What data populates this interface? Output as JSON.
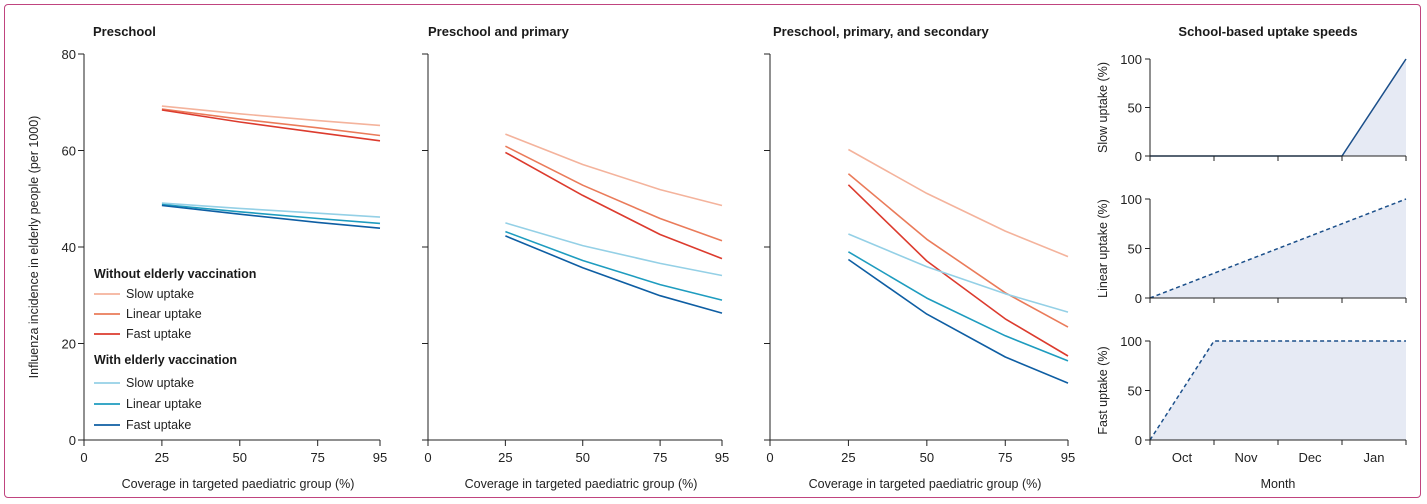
{
  "colors": {
    "without_slow": "#f4b39c",
    "without_linear": "#ea7b5a",
    "without_fast": "#dc3b2e",
    "with_slow": "#94d0e6",
    "with_linear": "#1e9cbf",
    "with_fast": "#0e5ea3",
    "uptake_line": "#1b4f8a",
    "uptake_fill": "#e6eaf4",
    "border": "#c0447f",
    "axis": "#222222"
  },
  "legend": {
    "without_heading": "Without elderly vaccination",
    "with_heading": "With elderly vaccination",
    "slow": "Slow uptake",
    "linear": "Linear uptake",
    "fast": "Fast uptake"
  },
  "chart_data": [
    {
      "type": "line",
      "title": "Preschool",
      "xlabel": "Coverage in targeted paediatric group (%)",
      "ylabel": "Influenza incidence in elderly people (per 1000)",
      "x_ticks": [
        "0",
        "25",
        "50",
        "75",
        "95"
      ],
      "y_ticks": [
        "0",
        "20",
        "40",
        "60",
        "80"
      ],
      "xlim": [
        0,
        95
      ],
      "ylim": [
        0,
        80
      ],
      "x": [
        25,
        50,
        75,
        95
      ],
      "series": [
        {
          "name": "Without elderly vaccination – Slow uptake",
          "key": "without_slow",
          "values": [
            69.2,
            67.6,
            66.2,
            65.2
          ]
        },
        {
          "name": "Without elderly vaccination – Linear uptake",
          "key": "without_linear",
          "values": [
            68.6,
            66.5,
            64.7,
            63.1
          ]
        },
        {
          "name": "Without elderly vaccination – Fast uptake",
          "key": "without_fast",
          "values": [
            68.4,
            65.9,
            63.7,
            62.0
          ]
        },
        {
          "name": "With elderly vaccination – Slow uptake",
          "key": "with_slow",
          "values": [
            49.1,
            48.0,
            47.0,
            46.2
          ]
        },
        {
          "name": "With elderly vaccination – Linear uptake",
          "key": "with_linear",
          "values": [
            48.8,
            47.3,
            45.9,
            44.9
          ]
        },
        {
          "name": "With elderly vaccination – Fast uptake",
          "key": "with_fast",
          "values": [
            48.6,
            46.8,
            45.1,
            43.9
          ]
        }
      ]
    },
    {
      "type": "line",
      "title": "Preschool and primary",
      "xlabel": "Coverage in targeted paediatric group (%)",
      "x_ticks": [
        "0",
        "25",
        "50",
        "75",
        "95"
      ],
      "xlim": [
        0,
        95
      ],
      "ylim": [
        0,
        80
      ],
      "x": [
        25,
        50,
        75,
        95
      ],
      "series": [
        {
          "name": "Without elderly vaccination – Slow uptake",
          "key": "without_slow",
          "values": [
            63.4,
            57.1,
            51.9,
            48.6
          ]
        },
        {
          "name": "Without elderly vaccination – Linear uptake",
          "key": "without_linear",
          "values": [
            60.9,
            52.8,
            45.9,
            41.3
          ]
        },
        {
          "name": "Without elderly vaccination – Fast uptake",
          "key": "without_fast",
          "values": [
            59.6,
            50.7,
            42.6,
            37.6
          ]
        },
        {
          "name": "With elderly vaccination – Slow uptake",
          "key": "with_slow",
          "values": [
            45.0,
            40.3,
            36.6,
            34.1
          ]
        },
        {
          "name": "With elderly vaccination – Linear uptake",
          "key": "with_linear",
          "values": [
            43.2,
            37.2,
            32.2,
            29.0
          ]
        },
        {
          "name": "With elderly vaccination – Fast uptake",
          "key": "with_fast",
          "values": [
            42.3,
            35.7,
            29.9,
            26.3
          ]
        }
      ]
    },
    {
      "type": "line",
      "title": "Preschool, primary, and secondary",
      "xlabel": "Coverage in targeted paediatric group (%)",
      "x_ticks": [
        "0",
        "25",
        "50",
        "75",
        "95"
      ],
      "xlim": [
        0,
        95
      ],
      "ylim": [
        0,
        80
      ],
      "x": [
        25,
        50,
        75,
        95
      ],
      "series": [
        {
          "name": "Without elderly vaccination – Slow uptake",
          "key": "without_slow",
          "values": [
            60.2,
            51.1,
            43.3,
            38.0
          ]
        },
        {
          "name": "Without elderly vaccination – Linear uptake",
          "key": "without_linear",
          "values": [
            55.2,
            41.6,
            30.5,
            23.4
          ]
        },
        {
          "name": "Without elderly vaccination – Fast uptake",
          "key": "without_fast",
          "values": [
            52.9,
            37.1,
            25.1,
            17.4
          ]
        },
        {
          "name": "With elderly vaccination – Slow uptake",
          "key": "with_slow",
          "values": [
            42.7,
            35.9,
            30.3,
            26.5
          ]
        },
        {
          "name": "With elderly vaccination – Linear uptake",
          "key": "with_linear",
          "values": [
            39.0,
            29.4,
            21.6,
            16.4
          ]
        },
        {
          "name": "With elderly vaccination – Fast uptake",
          "key": "with_fast",
          "values": [
            37.4,
            26.1,
            17.2,
            11.8
          ]
        }
      ]
    },
    {
      "type": "area",
      "title": "School-based uptake speeds",
      "xlabel": "Month",
      "x_ticks": [
        "Oct",
        "Nov",
        "Dec",
        "Jan"
      ],
      "xlim": [
        0,
        4
      ],
      "panels": [
        {
          "ylabel": "Slow uptake (%)",
          "y_ticks": [
            "0",
            "50",
            "100"
          ],
          "ylim": [
            0,
            100
          ],
          "line_style": "solid",
          "x": [
            0,
            3,
            4
          ],
          "values": [
            0,
            0,
            100
          ]
        },
        {
          "ylabel": "Linear uptake (%)",
          "y_ticks": [
            "0",
            "50",
            "100"
          ],
          "ylim": [
            0,
            100
          ],
          "line_style": "dashed",
          "x": [
            0,
            4
          ],
          "values": [
            0,
            100
          ]
        },
        {
          "ylabel": "Fast uptake (%)",
          "y_ticks": [
            "0",
            "50",
            "100"
          ],
          "ylim": [
            0,
            100
          ],
          "line_style": "dashed",
          "x": [
            0,
            1,
            4
          ],
          "values": [
            0,
            100,
            100
          ]
        }
      ]
    }
  ]
}
